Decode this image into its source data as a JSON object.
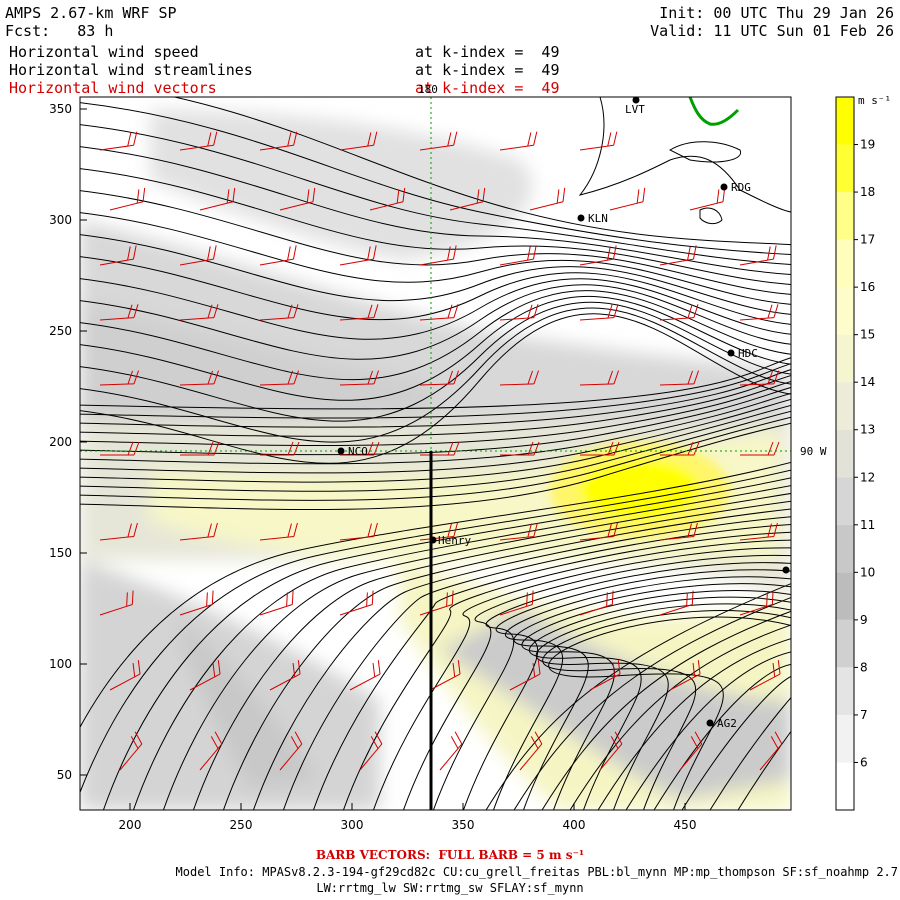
{
  "header": {
    "model_title": "AMPS 2.67-km WRF SP",
    "forecast": "Fcst:   83 h",
    "init": "Init: 00 UTC Thu 29 Jan 26",
    "valid": "Valid: 11 UTC Sun 01 Feb 26",
    "fields": [
      {
        "name": "Horizontal wind speed",
        "level": "at k-index =  49",
        "color": "#000000"
      },
      {
        "name": "Horizontal wind streamlines",
        "level": "at k-index =  49",
        "color": "#000000"
      },
      {
        "name": "Horizontal wind vectors",
        "level": "at k-index =  49",
        "color": "#d40000"
      }
    ]
  },
  "map": {
    "x_ticks": [
      "200",
      "250",
      "300",
      "350",
      "400",
      "450"
    ],
    "y_ticks": [
      "50",
      "100",
      "150",
      "200",
      "250",
      "300",
      "350"
    ],
    "meridian_label": "180",
    "parallel_label": "90 W",
    "barb_color": "#d40000",
    "streamline_color": "#000000",
    "coast_color": "#00a000",
    "stations": [
      {
        "id": "lvt",
        "label": "LVT"
      },
      {
        "id": "rdg",
        "label": "RDG"
      },
      {
        "id": "kln",
        "label": "KLN"
      },
      {
        "id": "hdc",
        "label": "HDC"
      },
      {
        "id": "nco",
        "label": "NCO"
      },
      {
        "id": "henry",
        "label": "Henry"
      },
      {
        "id": "ag2",
        "label": "AG2"
      },
      {
        "id": "edge",
        "label": ""
      }
    ]
  },
  "colorbar": {
    "units": "m s⁻¹",
    "labels": [
      "19",
      "18",
      "17",
      "16",
      "15",
      "14",
      "13",
      "12",
      "11",
      "10",
      "9",
      "8",
      "7",
      "6"
    ],
    "colors": [
      "#ffff00",
      "#ffff33",
      "#ffff88",
      "#ffffbb",
      "#fdfdcc",
      "#f5f5d0",
      "#ececd8",
      "#e2e2d8",
      "#d6d6d6",
      "#c8c8c8",
      "#bcbcbc",
      "#d0d0d0",
      "#e4e4e4",
      "#f2f2f2",
      "#ffffff"
    ]
  },
  "footer": {
    "barb_note": "BARB VECTORS:  FULL BARB = 5 m s⁻¹",
    "model_info": "Model Info: MPASv8.2.3-194-gf29cd82c CU:cu_grell_freitas PBL:bl_mynn MP:mp_thompson SF:sf_noahmp 2.7",
    "model_info2": "LW:rrtmg_lw SW:rrtmg_sw SFLAY:sf_mynn"
  }
}
